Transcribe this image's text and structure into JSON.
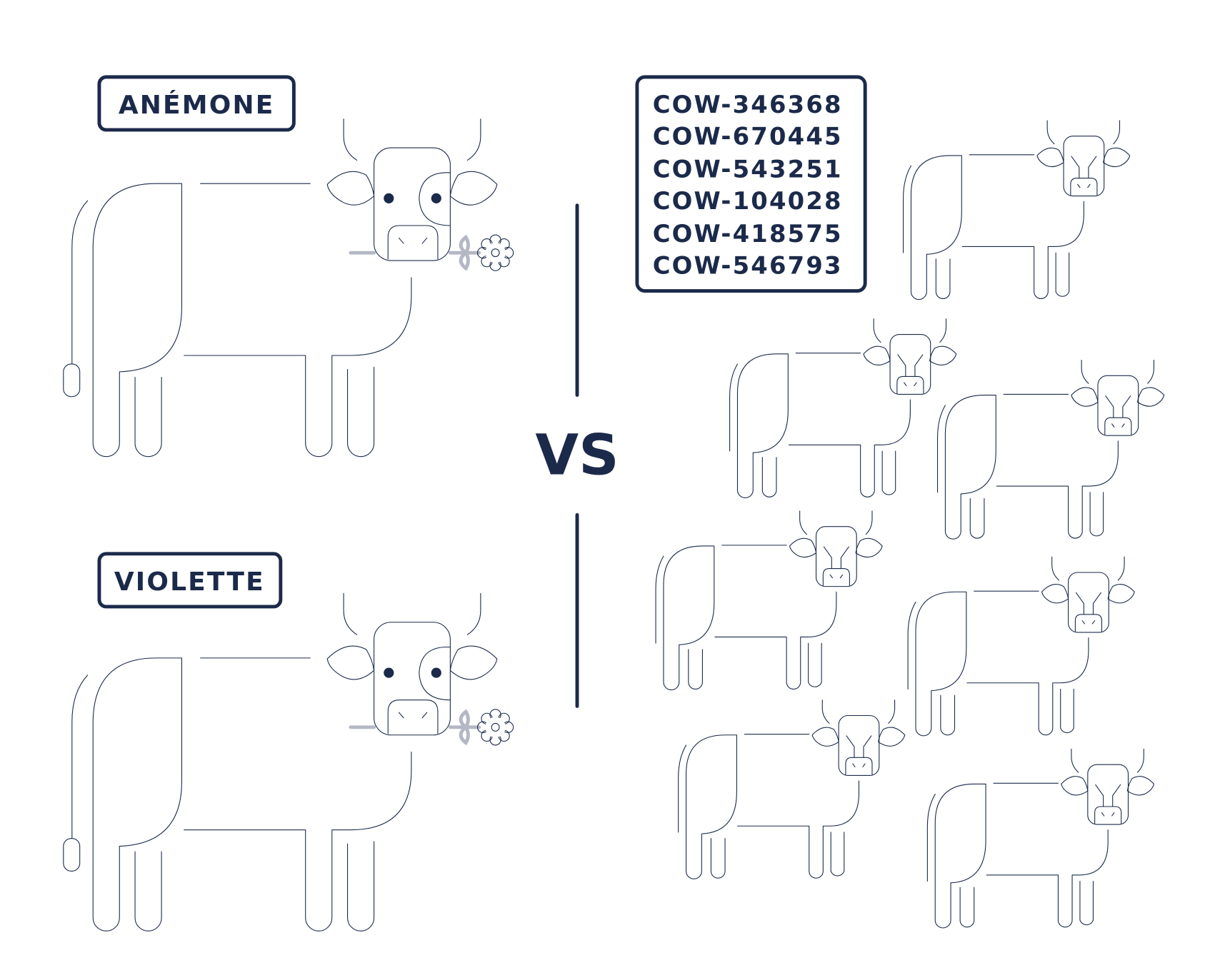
{
  "colors": {
    "ink": "#1b2a4a",
    "stem": "#b4b7c4",
    "background": "#ffffff"
  },
  "pets": [
    {
      "name": "ANÉMONE"
    },
    {
      "name": "VIOLETTE"
    }
  ],
  "versus": "VS",
  "cattle": {
    "ids": [
      "COW-346368",
      "COW-670445",
      "COW-543251",
      "COW-104028",
      "COW-418575",
      "COW-546793"
    ],
    "herd_icon": "cow-icon"
  },
  "pet_accessory_icon": "flower-icon"
}
